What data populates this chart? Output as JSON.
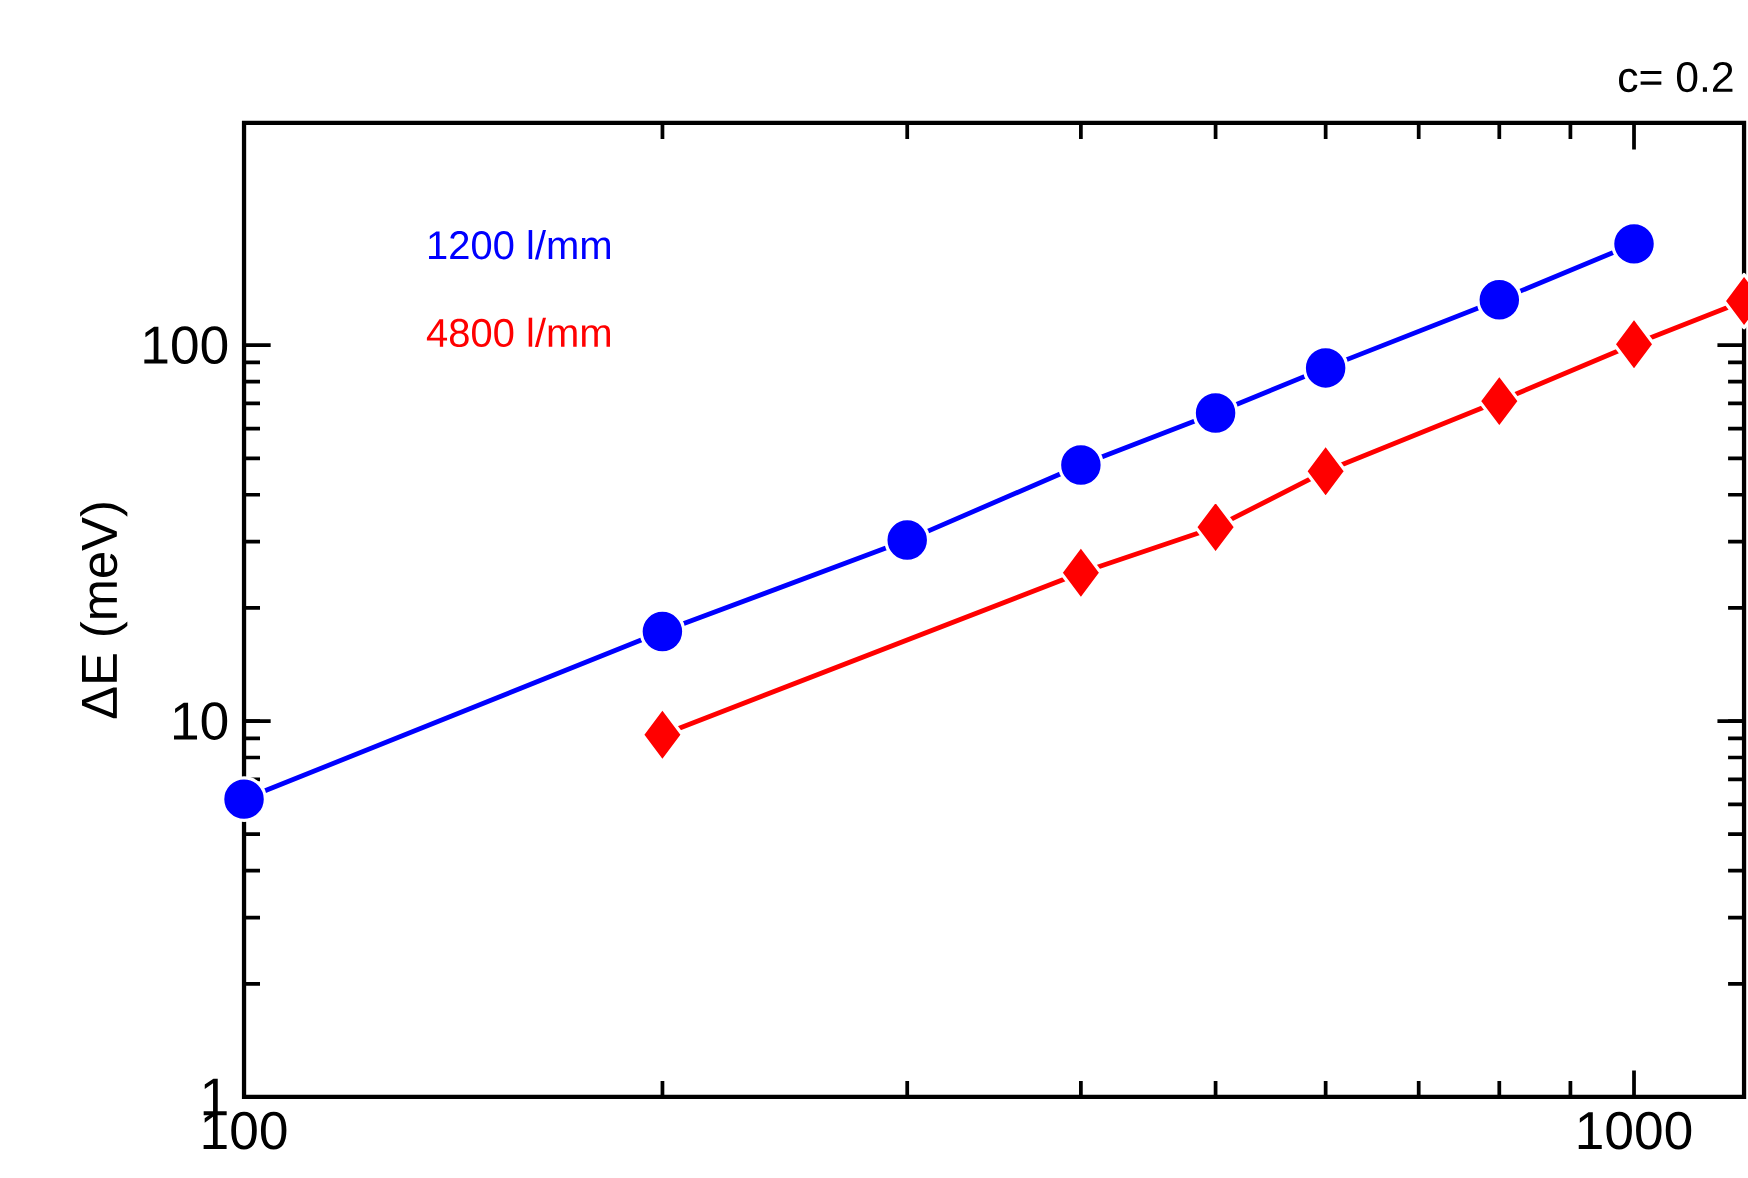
{
  "chart_data": {
    "type": "line",
    "ylabel": "ΔE (meV)",
    "annotations": [
      "c= 0.2"
    ],
    "log": "xy",
    "xlim": [
      100,
      1200
    ],
    "ylim": [
      1,
      390
    ],
    "xticks": [
      100,
      1000
    ],
    "yticks": [
      1,
      10,
      100
    ],
    "legend": false,
    "grid": false,
    "line_style": "solid",
    "series": [
      {
        "name": "1200 l/mm",
        "color": "#0000ff",
        "marker": "circle",
        "x": [
          100,
          200,
          300,
          400,
          500,
          600,
          800,
          1000
        ],
        "values": [
          6.2,
          17.3,
          30.3,
          48,
          66,
          87,
          132,
          186
        ]
      },
      {
        "name": "4800 l/mm",
        "color": "#ff0000",
        "marker": "diamond",
        "x": [
          200,
          400,
          500,
          600,
          800,
          1000,
          1200
        ],
        "values": [
          9.2,
          24.8,
          32.8,
          46.2,
          71,
          100.6,
          131
        ]
      }
    ]
  }
}
